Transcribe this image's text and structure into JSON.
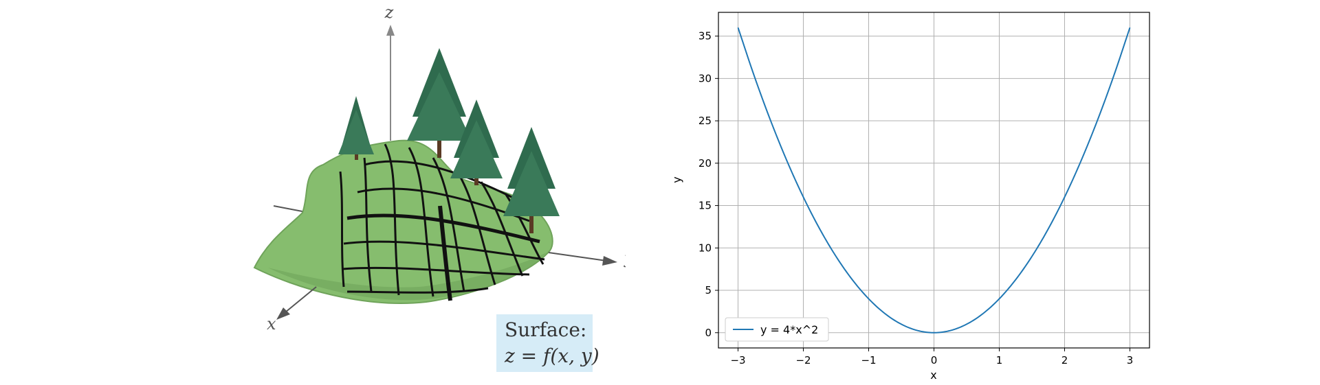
{
  "illustration": {
    "axis_z": "z",
    "axis_y": "y",
    "axis_x": "x",
    "caption_line1": "Surface:",
    "caption_line2": "z = f(x, y)",
    "surface_color": "#86bd6e",
    "tree_color": "#2f6b4e",
    "caption_bg": "#d6ecf7"
  },
  "chart_data": {
    "type": "line",
    "title": "",
    "xlabel": "x",
    "ylabel": "y",
    "xlim": [
      -3.3,
      3.3
    ],
    "ylim": [
      -1.8,
      37.8
    ],
    "xticks": [
      -3,
      -2,
      -1,
      0,
      1,
      2,
      3
    ],
    "xtick_labels": [
      "−3",
      "−2",
      "−1",
      "0",
      "1",
      "2",
      "3"
    ],
    "yticks": [
      0,
      5,
      10,
      15,
      20,
      25,
      30,
      35
    ],
    "ytick_labels": [
      "0",
      "5",
      "10",
      "15",
      "20",
      "25",
      "30",
      "35"
    ],
    "grid": true,
    "legend": "lower-left",
    "series": [
      {
        "name": "y = 4*x^2",
        "color": "#1f77b4",
        "x": [
          -3,
          -2.75,
          -2.5,
          -2.25,
          -2,
          -1.75,
          -1.5,
          -1.25,
          -1,
          -0.75,
          -0.5,
          -0.25,
          0,
          0.25,
          0.5,
          0.75,
          1,
          1.25,
          1.5,
          1.75,
          2,
          2.25,
          2.5,
          2.75,
          3
        ],
        "y": [
          36,
          30.25,
          25,
          20.25,
          16,
          12.25,
          9,
          6.25,
          4,
          2.25,
          1,
          0.25,
          0,
          0.25,
          1,
          2.25,
          4,
          6.25,
          9,
          12.25,
          16,
          20.25,
          25,
          30.25,
          36
        ]
      }
    ]
  }
}
